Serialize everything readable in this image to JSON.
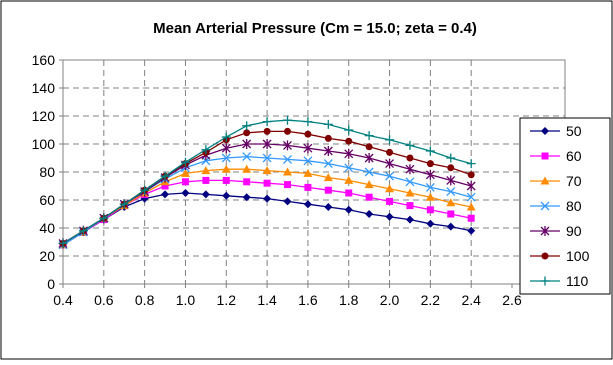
{
  "chart_data": {
    "type": "line",
    "title": "Mean Arterial Pressure (Cm = 15.0; zeta = 0.4)",
    "xlabel": "",
    "ylabel": "",
    "xlim": [
      0.4,
      2.6
    ],
    "ylim": [
      0,
      160
    ],
    "x_ticks": [
      "0.4",
      "0.6",
      "0.8",
      "1.0",
      "1.2",
      "1.4",
      "1.6",
      "1.8",
      "2.0",
      "2.2",
      "2.4",
      "2.6"
    ],
    "y_ticks": [
      "0",
      "20",
      "40",
      "60",
      "80",
      "100",
      "120",
      "140",
      "160"
    ],
    "grid": true,
    "legend_position": "right",
    "x": [
      0.4,
      0.5,
      0.6,
      0.7,
      0.8,
      0.9,
      1.0,
      1.1,
      1.2,
      1.3,
      1.4,
      1.5,
      1.6,
      1.7,
      1.8,
      1.9,
      2.0,
      2.1,
      2.2,
      2.3,
      2.4
    ],
    "series": [
      {
        "name": "50",
        "color": "#000080",
        "marker": "diamond",
        "values": [
          28,
          37,
          46,
          55,
          61,
          64,
          65,
          64,
          63,
          62,
          61,
          59,
          57,
          55,
          53,
          50,
          48,
          46,
          43,
          41,
          38
        ]
      },
      {
        "name": "60",
        "color": "#FF00FF",
        "marker": "square",
        "values": [
          28,
          37,
          46,
          56,
          64,
          70,
          73,
          74,
          74,
          73,
          72,
          71,
          69,
          67,
          65,
          62,
          59,
          56,
          53,
          50,
          47
        ]
      },
      {
        "name": "70",
        "color": "#FF8C00",
        "marker": "triangle",
        "values": [
          28,
          37,
          47,
          56,
          65,
          73,
          79,
          81,
          82,
          82,
          81,
          80,
          79,
          76,
          74,
          71,
          68,
          65,
          62,
          58,
          55
        ]
      },
      {
        "name": "80",
        "color": "#3399FF",
        "marker": "x",
        "values": [
          28,
          37,
          47,
          57,
          66,
          75,
          83,
          88,
          90,
          91,
          90,
          89,
          88,
          86,
          83,
          80,
          77,
          73,
          69,
          66,
          62
        ]
      },
      {
        "name": "90",
        "color": "#660066",
        "marker": "star",
        "values": [
          29,
          38,
          47,
          57,
          66,
          76,
          85,
          92,
          97,
          100,
          100,
          99,
          97,
          95,
          93,
          90,
          86,
          82,
          78,
          74,
          70
        ]
      },
      {
        "name": "100",
        "color": "#800000",
        "marker": "circle",
        "values": [
          29,
          38,
          47,
          57,
          67,
          77,
          86,
          94,
          103,
          108,
          109,
          109,
          107,
          104,
          102,
          98,
          94,
          90,
          86,
          83,
          78
        ]
      },
      {
        "name": "110",
        "color": "#008080",
        "marker": "plus",
        "values": [
          29,
          38,
          47,
          57,
          67,
          77,
          87,
          96,
          105,
          113,
          116,
          117,
          116,
          114,
          110,
          106,
          103,
          99,
          95,
          90,
          86
        ]
      }
    ]
  }
}
